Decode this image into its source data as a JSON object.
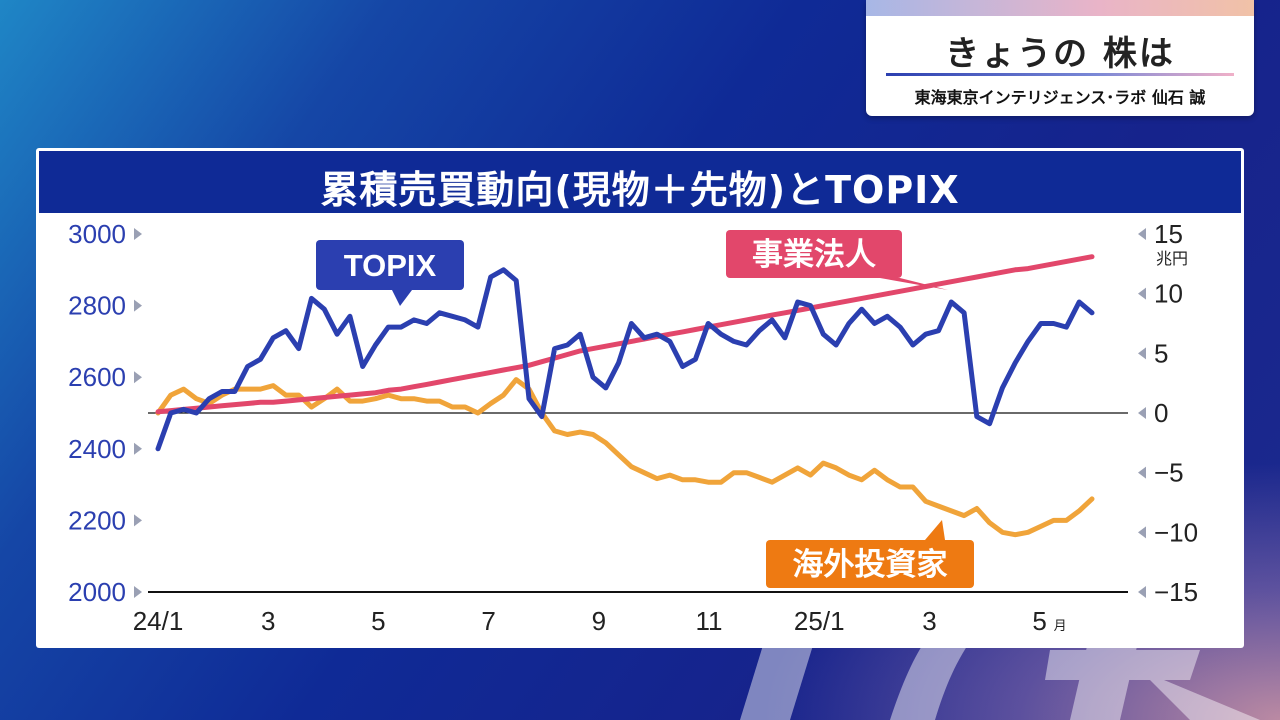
{
  "header": {
    "program_title": "きょうの 株は",
    "presenter": "東海東京インテリジェンス･ラボ 仙石 誠"
  },
  "chart_data": {
    "type": "line",
    "title": "累積売買動向(現物＋先物)とTOPIX",
    "x_ticks": [
      "24/1",
      "3",
      "5",
      "7",
      "9",
      "11",
      "25/1",
      "3",
      "5"
    ],
    "x_tick_suffix": "月",
    "left_axis": {
      "ticks": [
        3000,
        2800,
        2600,
        2400,
        2200,
        2000
      ],
      "range": [
        2000,
        3000
      ]
    },
    "right_axis": {
      "ticks": [
        "15",
        "10",
        "5",
        "0",
        "−5",
        "−10",
        "−15"
      ],
      "range": [
        -15,
        15
      ],
      "unit": "兆円"
    },
    "series": [
      {
        "name": "TOPIX",
        "axis": "left",
        "color": "#2b3fb0",
        "label_color": "#2b3fb0",
        "values": [
          2400,
          2500,
          2510,
          2500,
          2540,
          2560,
          2560,
          2630,
          2650,
          2710,
          2730,
          2680,
          2820,
          2790,
          2720,
          2770,
          2630,
          2690,
          2740,
          2740,
          2760,
          2750,
          2780,
          2770,
          2760,
          2740,
          2880,
          2900,
          2870,
          2540,
          2490,
          2680,
          2690,
          2720,
          2600,
          2570,
          2640,
          2750,
          2710,
          2720,
          2700,
          2630,
          2650,
          2750,
          2720,
          2700,
          2690,
          2730,
          2760,
          2710,
          2810,
          2800,
          2720,
          2690,
          2750,
          2790,
          2750,
          2770,
          2740,
          2690,
          2720,
          2730,
          2810,
          2780,
          2490,
          2470,
          2570,
          2640,
          2700,
          2750,
          2750,
          2740,
          2810,
          2780
        ]
      },
      {
        "name": "事業法人",
        "axis": "right",
        "color": "#e2476b",
        "label_color": "#e2476b",
        "values": [
          0.1,
          0.2,
          0.3,
          0.4,
          0.5,
          0.6,
          0.7,
          0.8,
          0.9,
          0.9,
          1.0,
          1.1,
          1.2,
          1.3,
          1.4,
          1.5,
          1.6,
          1.7,
          1.9,
          2.0,
          2.2,
          2.4,
          2.6,
          2.8,
          3.0,
          3.2,
          3.4,
          3.6,
          3.8,
          4.0,
          4.3,
          4.6,
          4.9,
          5.2,
          5.4,
          5.6,
          5.8,
          6.0,
          6.2,
          6.4,
          6.6,
          6.8,
          7.0,
          7.2,
          7.4,
          7.6,
          7.8,
          8.0,
          8.2,
          8.4,
          8.6,
          8.8,
          9.0,
          9.2,
          9.4,
          9.6,
          9.8,
          10.0,
          10.2,
          10.4,
          10.6,
          10.8,
          11.0,
          11.2,
          11.4,
          11.6,
          11.8,
          12.0,
          12.1,
          12.3,
          12.5,
          12.7,
          12.9,
          13.1
        ]
      },
      {
        "name": "海外投資家",
        "axis": "right",
        "color": "#f0a43a",
        "label_color": "#ee7a12",
        "values": [
          0,
          1.5,
          2,
          1.2,
          0.8,
          1.5,
          2,
          2,
          2,
          2.3,
          1.5,
          1.5,
          0.5,
          1.2,
          2,
          1,
          1,
          1.2,
          1.5,
          1.2,
          1.2,
          1,
          1,
          0.5,
          0.5,
          0,
          0.8,
          1.5,
          2.8,
          2,
          0,
          -1.5,
          -1.8,
          -1.6,
          -1.8,
          -2.5,
          -3.5,
          -4.5,
          -5,
          -5.5,
          -5.2,
          -5.6,
          -5.6,
          -5.8,
          -5.8,
          -5.0,
          -5.0,
          -5.4,
          -5.8,
          -5.2,
          -4.6,
          -5.2,
          -4.2,
          -4.6,
          -5.2,
          -5.6,
          -4.8,
          -5.6,
          -6.2,
          -6.2,
          -7.4,
          -7.8,
          -8.2,
          -8.6,
          -8.0,
          -9.2,
          -10.0,
          -10.2,
          -10.0,
          -9.5,
          -9.0,
          -9.0,
          -8.2,
          -7.2
        ]
      }
    ]
  }
}
